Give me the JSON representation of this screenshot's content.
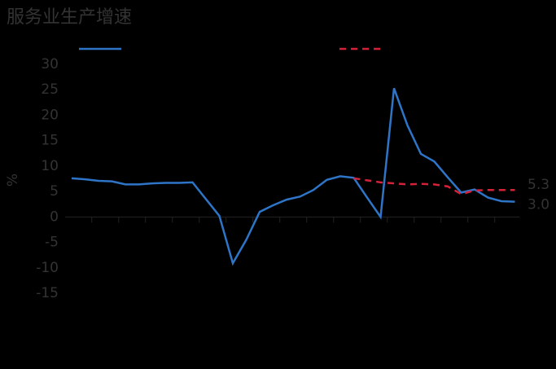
{
  "chart_data": {
    "type": "line",
    "title": "服务业生产增速",
    "ylabel": "%",
    "categories": [
      null,
      null,
      null,
      null,
      null,
      null,
      null,
      null,
      null,
      null,
      null,
      null,
      null,
      null,
      null,
      null,
      null,
      null,
      null,
      null,
      null,
      null,
      null,
      null,
      null,
      null,
      null,
      null,
      null,
      null,
      null,
      null,
      null,
      null
    ],
    "series": [
      {
        "color": "#2e75c8",
        "dash": false,
        "values": [
          7.6,
          7.4,
          7.1,
          7.0,
          6.4,
          6.4,
          6.6,
          6.7,
          6.7,
          6.8,
          3.5,
          0.2,
          -9.1,
          -4.5,
          1.0,
          2.3,
          3.4,
          4.0,
          5.3,
          7.3,
          8.0,
          7.7,
          3.8,
          0.0,
          25.3,
          18.0,
          12.4,
          10.9,
          7.8,
          4.8,
          5.4,
          3.8,
          3.1,
          3.0
        ],
        "value_labels": [
          null,
          null,
          null,
          null,
          null,
          null,
          null,
          null,
          null,
          null,
          null,
          null,
          null,
          null,
          null,
          null,
          null,
          null,
          null,
          null,
          null,
          null,
          null,
          null,
          null,
          null,
          null,
          null,
          null,
          null,
          null,
          null,
          null,
          "3.0"
        ]
      },
      {
        "color": "#d6213a",
        "dash": true,
        "values": [
          null,
          null,
          null,
          null,
          null,
          null,
          null,
          null,
          null,
          null,
          null,
          null,
          null,
          null,
          null,
          null,
          null,
          null,
          null,
          null,
          null,
          7.6,
          7.2,
          6.8,
          6.6,
          6.4,
          6.5,
          6.4,
          6.0,
          4.5,
          5.2,
          5.3,
          5.3,
          5.3
        ],
        "value_labels": [
          null,
          null,
          null,
          null,
          null,
          null,
          null,
          null,
          null,
          null,
          null,
          null,
          null,
          null,
          null,
          null,
          null,
          null,
          null,
          null,
          null,
          null,
          null,
          null,
          null,
          null,
          null,
          null,
          null,
          null,
          null,
          null,
          null,
          "5.3"
        ]
      }
    ],
    "ylim": [
      -15,
      30
    ],
    "yticks": [
      -15,
      -10,
      -5,
      0,
      5,
      10,
      15,
      20,
      25,
      30
    ]
  }
}
